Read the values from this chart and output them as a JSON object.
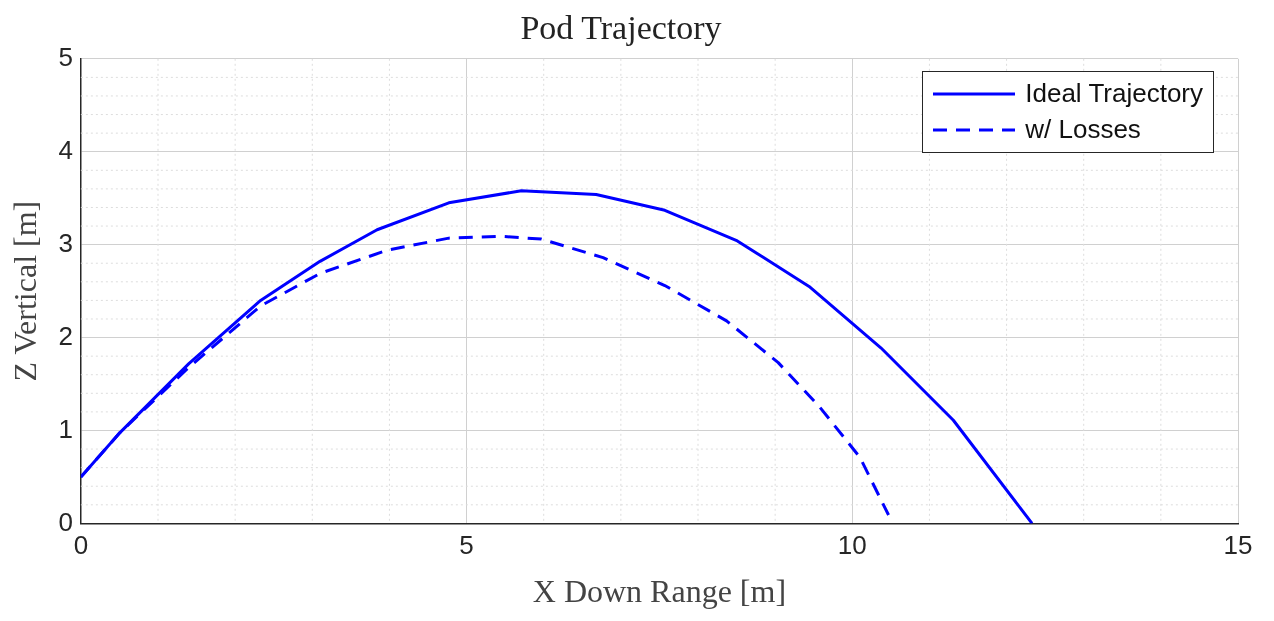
{
  "chart_data": {
    "type": "line",
    "title": "Pod Trajectory",
    "xlabel": "X Down Range [m]",
    "ylabel": "Z Vertical [m]",
    "xlim": [
      0,
      15
    ],
    "xticks": [
      0,
      5,
      10,
      15
    ],
    "ylim": [
      0,
      5
    ],
    "yticks": [
      0,
      1,
      2,
      3,
      4,
      5
    ],
    "grid": true,
    "legend": "top right",
    "series": [
      {
        "name": "Ideal Trajectory",
        "color": "#0000ff",
        "line_style": "solid",
        "x": [
          0,
          0.51,
          1.4,
          2.33,
          3.1,
          3.84,
          4.77,
          5.71,
          6.68,
          7.57,
          8.51,
          9.44,
          10.37,
          11.31,
          12.33
        ],
        "values": [
          0.5,
          0.98,
          1.72,
          2.4,
          2.82,
          3.16,
          3.45,
          3.58,
          3.54,
          3.37,
          3.04,
          2.55,
          1.89,
          1.11,
          0
        ]
      },
      {
        "name": "w/ Losses",
        "color": "#0000ff",
        "line_style": "dashed",
        "x": [
          0,
          0.51,
          1.4,
          2.33,
          3.1,
          3.97,
          4.77,
          5.44,
          5.97,
          6.77,
          7.57,
          8.37,
          9.04,
          9.57,
          10.1,
          10.47
        ],
        "values": [
          0.5,
          0.98,
          1.68,
          2.34,
          2.69,
          2.94,
          3.07,
          3.09,
          3.06,
          2.86,
          2.56,
          2.18,
          1.73,
          1.26,
          0.71,
          0.09
        ]
      }
    ]
  }
}
